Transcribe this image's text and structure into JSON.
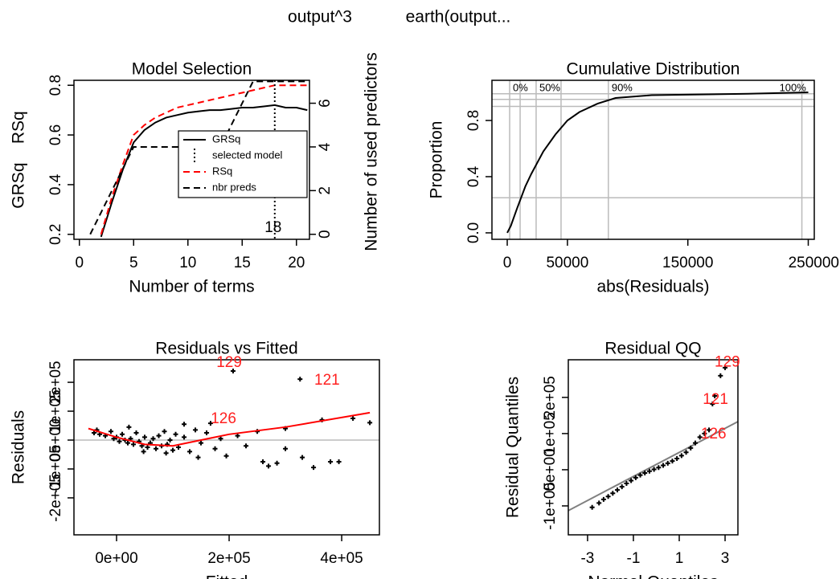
{
  "titles": [
    "output^3",
    "earth(output..."
  ],
  "chart_data": [
    {
      "type": "line",
      "title": "Model Selection",
      "xlabel": "Number of terms",
      "ylabel": "GRSq    RSq",
      "y2label": "Number of used predictors",
      "xlim": [
        -0.5,
        21.2
      ],
      "ylim": [
        0.18,
        0.82
      ],
      "y2lim": [
        -0.23,
        7.05
      ],
      "xticks": [
        0,
        5,
        10,
        15,
        20
      ],
      "yticks": [
        0.2,
        0.4,
        0.6,
        0.8
      ],
      "y2ticks": [
        0,
        2,
        4,
        6
      ],
      "legend": "right",
      "x": [
        1,
        2,
        3,
        4,
        5,
        6,
        7,
        8,
        9,
        10,
        11,
        12,
        13,
        14,
        15,
        16,
        17,
        18,
        19,
        20,
        21
      ],
      "series": [
        {
          "name": "GRSq",
          "color": "#000000",
          "dash": "solid",
          "values": [
            null,
            0.19,
            0.33,
            0.46,
            0.57,
            0.62,
            0.65,
            0.67,
            0.68,
            0.69,
            0.695,
            0.7,
            0.7,
            0.705,
            0.71,
            0.71,
            0.715,
            0.72,
            0.71,
            0.71,
            0.7
          ]
        },
        {
          "name": "RSq",
          "color": "#ff0000",
          "dash": "dashed",
          "values": [
            null,
            0.2,
            0.35,
            0.48,
            0.6,
            0.64,
            0.67,
            0.69,
            0.71,
            0.72,
            0.73,
            0.74,
            0.75,
            0.76,
            0.77,
            0.78,
            0.79,
            0.8,
            0.8,
            0.8,
            0.8
          ]
        },
        {
          "name": "nbr preds",
          "color": "#000000",
          "dash": "dashed",
          "axis": "y2",
          "values": [
            0,
            1,
            2,
            3,
            4,
            4,
            4,
            4,
            4,
            4,
            4,
            4,
            4,
            5,
            6,
            7,
            7,
            7,
            7,
            7,
            7
          ]
        }
      ],
      "marker_lines": [
        {
          "name": "selected model",
          "x": 18,
          "color": "#000000",
          "dash": "dotted"
        }
      ]
    },
    {
      "type": "line",
      "title": "Cumulative Distribution",
      "xlabel": "abs(Residuals)",
      "ylabel": "Proportion",
      "xlim": [
        -12700,
        255000
      ],
      "ylim": [
        -0.046,
        1.086
      ],
      "xticks": [
        0,
        50000,
        150000,
        250000
      ],
      "yticks": [
        {
          "value": 0,
          "label": "0.0"
        },
        0.4,
        0.8
      ],
      "vlines": [
        2000,
        10700,
        24000,
        44700,
        84000,
        244700
      ],
      "hlines": [
        0.25,
        0.9,
        0.95,
        0.99
      ],
      "quantile_labels": [
        {
          "value": 2000,
          "label": "0%"
        },
        {
          "value": 24000,
          "label": "50%"
        },
        {
          "value": 84000,
          "label": "90%"
        },
        {
          "value": 244700,
          "label": "100%"
        }
      ],
      "x": [
        0,
        3000,
        8000,
        15000,
        20000,
        30000,
        40000,
        50000,
        60000,
        75000,
        90000,
        120000,
        200000,
        250000
      ],
      "series": [
        {
          "color": "#000000",
          "dash": "solid",
          "values": [
            0,
            0.05,
            0.17,
            0.33,
            0.42,
            0.58,
            0.7,
            0.8,
            0.86,
            0.92,
            0.96,
            0.98,
            0.99,
            1.0
          ]
        }
      ]
    },
    {
      "type": "scatter",
      "title": "Residuals vs Fitted",
      "xlabel": "Fitted",
      "ylabel": "Residuals",
      "xlim": [
        -75700,
        467000
      ],
      "ylim": [
        -328000,
        278000
      ],
      "xticks": [
        {
          "value": 0,
          "label": "0e+00"
        },
        {
          "value": 200000,
          "label": "2e+05"
        },
        {
          "value": 400000,
          "label": "4e+05"
        }
      ],
      "yticks": [
        {
          "value": -200000,
          "label": "-2e+05"
        },
        {
          "value": -100000,
          "label": "-1e+05"
        },
        {
          "value": 0,
          "label": "0e+00"
        },
        {
          "value": 100000,
          "label": "1e+05"
        },
        {
          "value": 200000,
          "label": "2e+05"
        }
      ],
      "hlines": [
        0
      ],
      "series": [
        {
          "marker": "plus",
          "color": "#000000",
          "x": [
            -40000,
            -30000,
            -20000,
            -10000,
            -5000,
            0,
            5000,
            10000,
            15000,
            20000,
            25000,
            30000,
            35000,
            40000,
            45000,
            50000,
            55000,
            60000,
            65000,
            70000,
            75000,
            80000,
            85000,
            90000,
            95000,
            100000,
            105000,
            110000,
            120000,
            130000,
            140000,
            150000,
            160000,
            167000,
            175000,
            185000,
            195000,
            207000,
            215000,
            230000,
            250000,
            260000,
            270000,
            285000,
            300000,
            330000,
            326000,
            350000,
            365000,
            380000,
            395000,
            420000,
            450000,
            -35000,
            22000,
            48000,
            88000,
            120000,
            145000,
            300000
          ],
          "values": [
            25000,
            20000,
            15000,
            30000,
            5000,
            10000,
            -5000,
            20000,
            0,
            -10000,
            5000,
            -15000,
            25000,
            -5000,
            -20000,
            10000,
            -25000,
            -10000,
            5000,
            -30000,
            15000,
            -20000,
            30000,
            -15000,
            0,
            -35000,
            20000,
            -25000,
            10000,
            -40000,
            35000,
            -10000,
            25000,
            58000,
            -30000,
            5000,
            -55000,
            239000,
            15000,
            -20000,
            30000,
            -75000,
            -90000,
            -80000,
            40000,
            -60000,
            211000,
            -95000,
            70000,
            -75000,
            -75000,
            75000,
            60000,
            35000,
            45000,
            -40000,
            -45000,
            55000,
            -60000,
            -30000
          ]
        },
        {
          "color": "#ff0000",
          "dash": "solid",
          "x": [
            -50000,
            0,
            50000,
            100000,
            150000,
            200000,
            300000,
            450000
          ],
          "values": [
            40000,
            10000,
            -15000,
            -20000,
            0,
            20000,
            45000,
            95000
          ]
        }
      ],
      "annotations": [
        {
          "text": "129",
          "x": 200000,
          "y": 267000
        },
        {
          "text": "121",
          "x": 374000,
          "y": 206000
        },
        {
          "text": "126",
          "x": 190000,
          "y": 72000
        }
      ]
    },
    {
      "type": "scatter",
      "title": "Residual QQ",
      "xlabel": "Normal Quantiles",
      "ylabel": "Residual Quantiles",
      "xlim": [
        -3.84,
        3.56
      ],
      "ylim": [
        -180000,
        304000
      ],
      "xticks": [
        -3,
        -1,
        1,
        3
      ],
      "yticks": [
        {
          "value": -100000,
          "label": "-1e+05"
        },
        {
          "value": 0,
          "label": "0e+00"
        },
        {
          "value": 100000,
          "label": "1e+05"
        },
        {
          "value": 200000,
          "label": "2e+05"
        }
      ],
      "series": [
        {
          "color": "#808080",
          "dash": "solid",
          "x": [
            -3.84,
            3.56
          ],
          "values": [
            -113000,
            133000
          ]
        },
        {
          "marker": "plus",
          "color": "#000000",
          "x": [
            -2.8,
            -2.5,
            -2.3,
            -2.1,
            -1.9,
            -1.7,
            -1.5,
            -1.3,
            -1.1,
            -0.9,
            -0.7,
            -0.5,
            -0.3,
            -0.1,
            0.1,
            0.3,
            0.5,
            0.7,
            0.9,
            1.1,
            1.3,
            1.5,
            1.7,
            1.9,
            2.1,
            2.3,
            2.45,
            2.55,
            2.8,
            3.0
          ],
          "values": [
            -104000,
            -92000,
            -82000,
            -74000,
            -65000,
            -56000,
            -47000,
            -38000,
            -30000,
            -22000,
            -15000,
            -9000,
            -4000,
            1000,
            6000,
            12000,
            18000,
            24000,
            31000,
            39000,
            48000,
            60000,
            74000,
            90000,
            100000,
            110000,
            182000,
            204000,
            260000,
            282000
          ]
        }
      ],
      "annotations": [
        {
          "text": "129",
          "x": 3.1,
          "y": 296000
        },
        {
          "text": "121",
          "x": 2.58,
          "y": 193000
        },
        {
          "text": "126",
          "x": 2.5,
          "y": 98000
        }
      ]
    }
  ]
}
